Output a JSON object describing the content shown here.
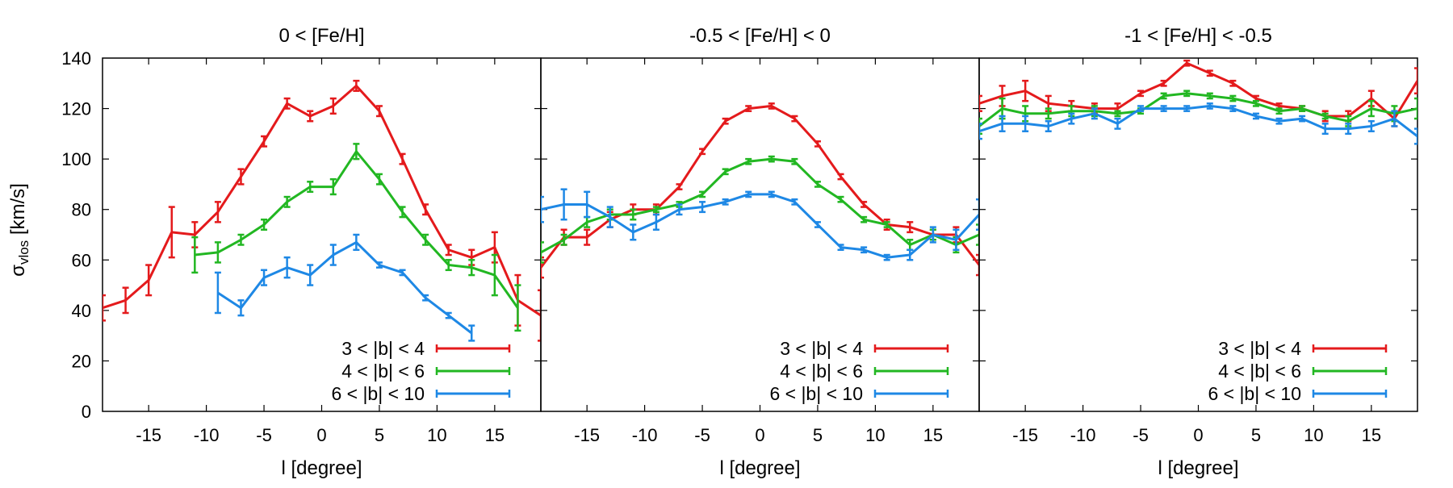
{
  "colors": {
    "red": "#e41a1c",
    "green": "#22b722",
    "blue": "#1e88e5",
    "axis": "#000000"
  },
  "chart_data": {
    "type": "line",
    "ylabel": "σvlos [km/s]",
    "ylabel_main": "σ",
    "ylabel_sub": "vlos",
    "ylabel_unit": " [km/s]",
    "ylim": [
      0,
      140
    ],
    "yticks": [
      0,
      20,
      40,
      60,
      80,
      100,
      120,
      140
    ],
    "xlim": [
      -19,
      19
    ],
    "xticks": [
      -15,
      -10,
      -5,
      0,
      5,
      10,
      15
    ],
    "xlabel": "l  [degree]",
    "series_names": [
      "3 < |b| < 4",
      "4 < |b| < 6",
      "6 < |b| < 10"
    ],
    "panels": [
      {
        "title": "0 < [Fe/H]",
        "series": [
          {
            "name": "3 < |b| < 4",
            "color": "red",
            "x": [
              -19,
              -17,
              -15,
              -13,
              -11,
              -9,
              -7,
              -5,
              -3,
              -1,
              1,
              3,
              5,
              7,
              9,
              11,
              13,
              15,
              17,
              19
            ],
            "y": [
              41,
              44,
              52,
              71,
              70,
              79,
              93,
              107,
              122,
              117,
              121,
              129,
              119,
              100,
              80,
              64,
              61,
              65,
              44,
              38
            ],
            "err": [
              5,
              5,
              6,
              10,
              5,
              4,
              3,
              2,
              2,
              2,
              3,
              2,
              2,
              2,
              2,
              2,
              3,
              6,
              10,
              10
            ]
          },
          {
            "name": "4 < |b| < 6",
            "color": "green",
            "x": [
              -11,
              -9,
              -7,
              -5,
              -3,
              -1,
              1,
              3,
              5,
              7,
              9,
              11,
              13,
              15,
              17
            ],
            "y": [
              62,
              63,
              68,
              74,
              83,
              89,
              89,
              103,
              92,
              79,
              68,
              58,
              57,
              54,
              41
            ],
            "err": [
              7,
              4,
              2,
              2,
              2,
              2,
              3,
              3,
              2,
              2,
              2,
              2,
              3,
              8,
              9
            ]
          },
          {
            "name": "6 < |b| < 10",
            "color": "blue",
            "x": [
              -9,
              -7,
              -5,
              -3,
              -1,
              1,
              3,
              5,
              7,
              9,
              11,
              13
            ],
            "y": [
              47,
              41,
              53,
              57,
              54,
              62,
              67,
              58,
              55,
              45,
              38,
              31
            ],
            "err": [
              8,
              3,
              3,
              4,
              4,
              4,
              3,
              1,
              1,
              1,
              1,
              3
            ]
          }
        ]
      },
      {
        "title": "-0.5 < [Fe/H] < 0",
        "series": [
          {
            "name": "3 < |b| < 4",
            "color": "red",
            "x": [
              -19,
              -17,
              -15,
              -13,
              -11,
              -9,
              -7,
              -5,
              -3,
              -1,
              1,
              3,
              5,
              7,
              9,
              11,
              13,
              15,
              17,
              19
            ],
            "y": [
              57,
              69,
              69,
              76,
              80,
              80,
              89,
              103,
              115,
              120,
              121,
              116,
              106,
              93,
              82,
              74,
              73,
              70,
              70,
              58
            ],
            "err": [
              4,
              3,
              3,
              3,
              2,
              2,
              1,
              1,
              1,
              1,
              1,
              1,
              1,
              1,
              1,
              2,
              2,
              2,
              3,
              4
            ]
          },
          {
            "name": "4 < |b| < 6",
            "color": "green",
            "x": [
              -19,
              -17,
              -15,
              -13,
              -11,
              -9,
              -7,
              -5,
              -3,
              -1,
              1,
              3,
              5,
              7,
              9,
              11,
              13,
              15,
              17,
              19
            ],
            "y": [
              63,
              68,
              75,
              78,
              78,
              80,
              82,
              86,
              95,
              99,
              100,
              99,
              90,
              84,
              76,
              74,
              66,
              70,
              66,
              70
            ],
            "err": [
              4,
              2,
              2,
              2,
              2,
              1,
              1,
              1,
              1,
              1,
              1,
              1,
              1,
              1,
              1,
              1,
              2,
              2,
              3,
              4
            ]
          },
          {
            "name": "6 < |b| < 10",
            "color": "blue",
            "x": [
              -19,
              -17,
              -15,
              -13,
              -11,
              -9,
              -7,
              -5,
              -3,
              -1,
              1,
              3,
              5,
              7,
              9,
              11,
              13,
              15,
              17,
              19
            ],
            "y": [
              80,
              82,
              82,
              77,
              71,
              75,
              80,
              81,
              83,
              86,
              86,
              83,
              74,
              65,
              64,
              61,
              62,
              70,
              68,
              78
            ],
            "err": [
              5,
              6,
              5,
              4,
              3,
              3,
              2,
              2,
              1,
              1,
              1,
              1,
              1,
              1,
              1,
              1,
              2,
              3,
              4,
              6
            ]
          }
        ]
      },
      {
        "title": "-1 < [Fe/H] < -0.5",
        "series": [
          {
            "name": "3 < |b| < 4",
            "color": "red",
            "x": [
              -19,
              -17,
              -15,
              -13,
              -11,
              -9,
              -7,
              -5,
              -3,
              -1,
              1,
              3,
              5,
              7,
              9,
              11,
              13,
              15,
              17,
              19
            ],
            "y": [
              122,
              125,
              127,
              122,
              121,
              120,
              120,
              126,
              130,
              138,
              134,
              130,
              124,
              121,
              120,
              117,
              117,
              124,
              116,
              131
            ],
            "err": [
              3,
              4,
              4,
              3,
              2,
              2,
              2,
              1,
              1,
              1,
              1,
              1,
              1,
              1,
              1,
              2,
              2,
              3,
              3,
              5
            ]
          },
          {
            "name": "4 < |b| < 6",
            "color": "green",
            "x": [
              -19,
              -17,
              -15,
              -13,
              -11,
              -9,
              -7,
              -5,
              -3,
              -1,
              1,
              3,
              5,
              7,
              9,
              11,
              13,
              15,
              17,
              19
            ],
            "y": [
              113,
              120,
              118,
              118,
              119,
              119,
              118,
              119,
              125,
              126,
              125,
              124,
              122,
              119,
              120,
              117,
              115,
              120,
              118,
              120
            ],
            "err": [
              3,
              4,
              3,
              2,
              2,
              2,
              1,
              1,
              1,
              1,
              1,
              1,
              1,
              1,
              1,
              1,
              2,
              3,
              3,
              4
            ]
          },
          {
            "name": "6 < |b| < 10",
            "color": "blue",
            "x": [
              -19,
              -17,
              -15,
              -13,
              -11,
              -9,
              -7,
              -5,
              -3,
              -1,
              1,
              3,
              5,
              7,
              9,
              11,
              13,
              15,
              17,
              19
            ],
            "y": [
              111,
              114,
              114,
              113,
              116,
              118,
              114,
              120,
              120,
              120,
              121,
              120,
              117,
              115,
              116,
              112,
              112,
              113,
              116,
              109
            ],
            "err": [
              3,
              3,
              3,
              2,
              2,
              2,
              2,
              1,
              1,
              1,
              1,
              1,
              1,
              1,
              1,
              2,
              2,
              2,
              3,
              3
            ]
          }
        ]
      }
    ]
  }
}
